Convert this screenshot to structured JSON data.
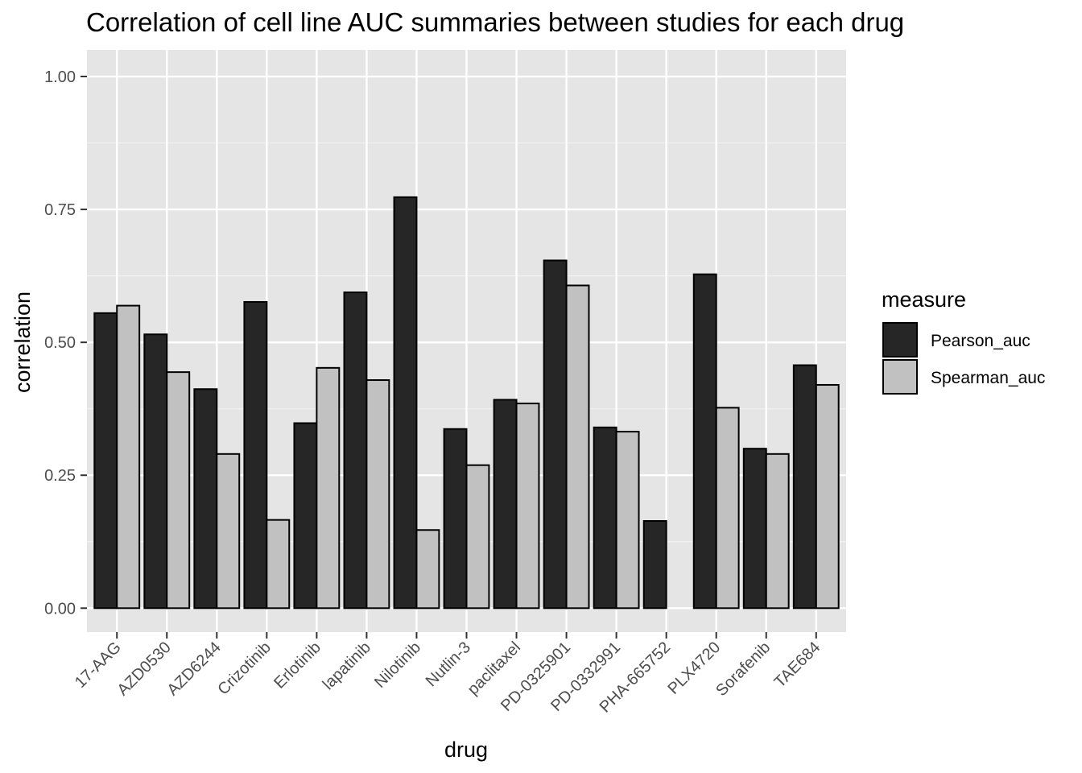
{
  "chart_data": {
    "type": "bar",
    "title": "Correlation of cell line AUC summaries between studies for each drug",
    "xlabel": "drug",
    "ylabel": "correlation",
    "ylim": [
      -0.045,
      1.05
    ],
    "yticks": [
      0.0,
      0.25,
      0.5,
      0.75,
      1.0
    ],
    "ytick_labels": [
      "0.00",
      "0.25",
      "0.50",
      "0.75",
      "1.00"
    ],
    "categories": [
      "17-AAG",
      "AZD0530",
      "AZD6244",
      "Crizotinib",
      "Erlotinib",
      "lapatinib",
      "Nilotinib",
      "Nutlin-3",
      "paclitaxel",
      "PD-0325901",
      "PD-0332991",
      "PHA-665752",
      "PLX4720",
      "Sorafenib",
      "TAE684"
    ],
    "series": [
      {
        "name": "Pearson_auc",
        "color": "#262626",
        "values": [
          0.555,
          0.515,
          0.412,
          0.576,
          0.348,
          0.594,
          0.773,
          0.337,
          0.392,
          0.654,
          0.34,
          0.164,
          0.628,
          0.3,
          0.457
        ]
      },
      {
        "name": "Spearman_auc",
        "color": "#c1c1c1",
        "values": [
          0.569,
          0.444,
          0.29,
          0.166,
          0.452,
          0.429,
          0.147,
          0.269,
          0.385,
          0.607,
          0.332,
          null,
          0.377,
          0.29,
          0.42
        ]
      }
    ],
    "legend": {
      "title": "measure",
      "position": "right"
    },
    "grid": true,
    "panel_background": "#e5e5e5"
  }
}
